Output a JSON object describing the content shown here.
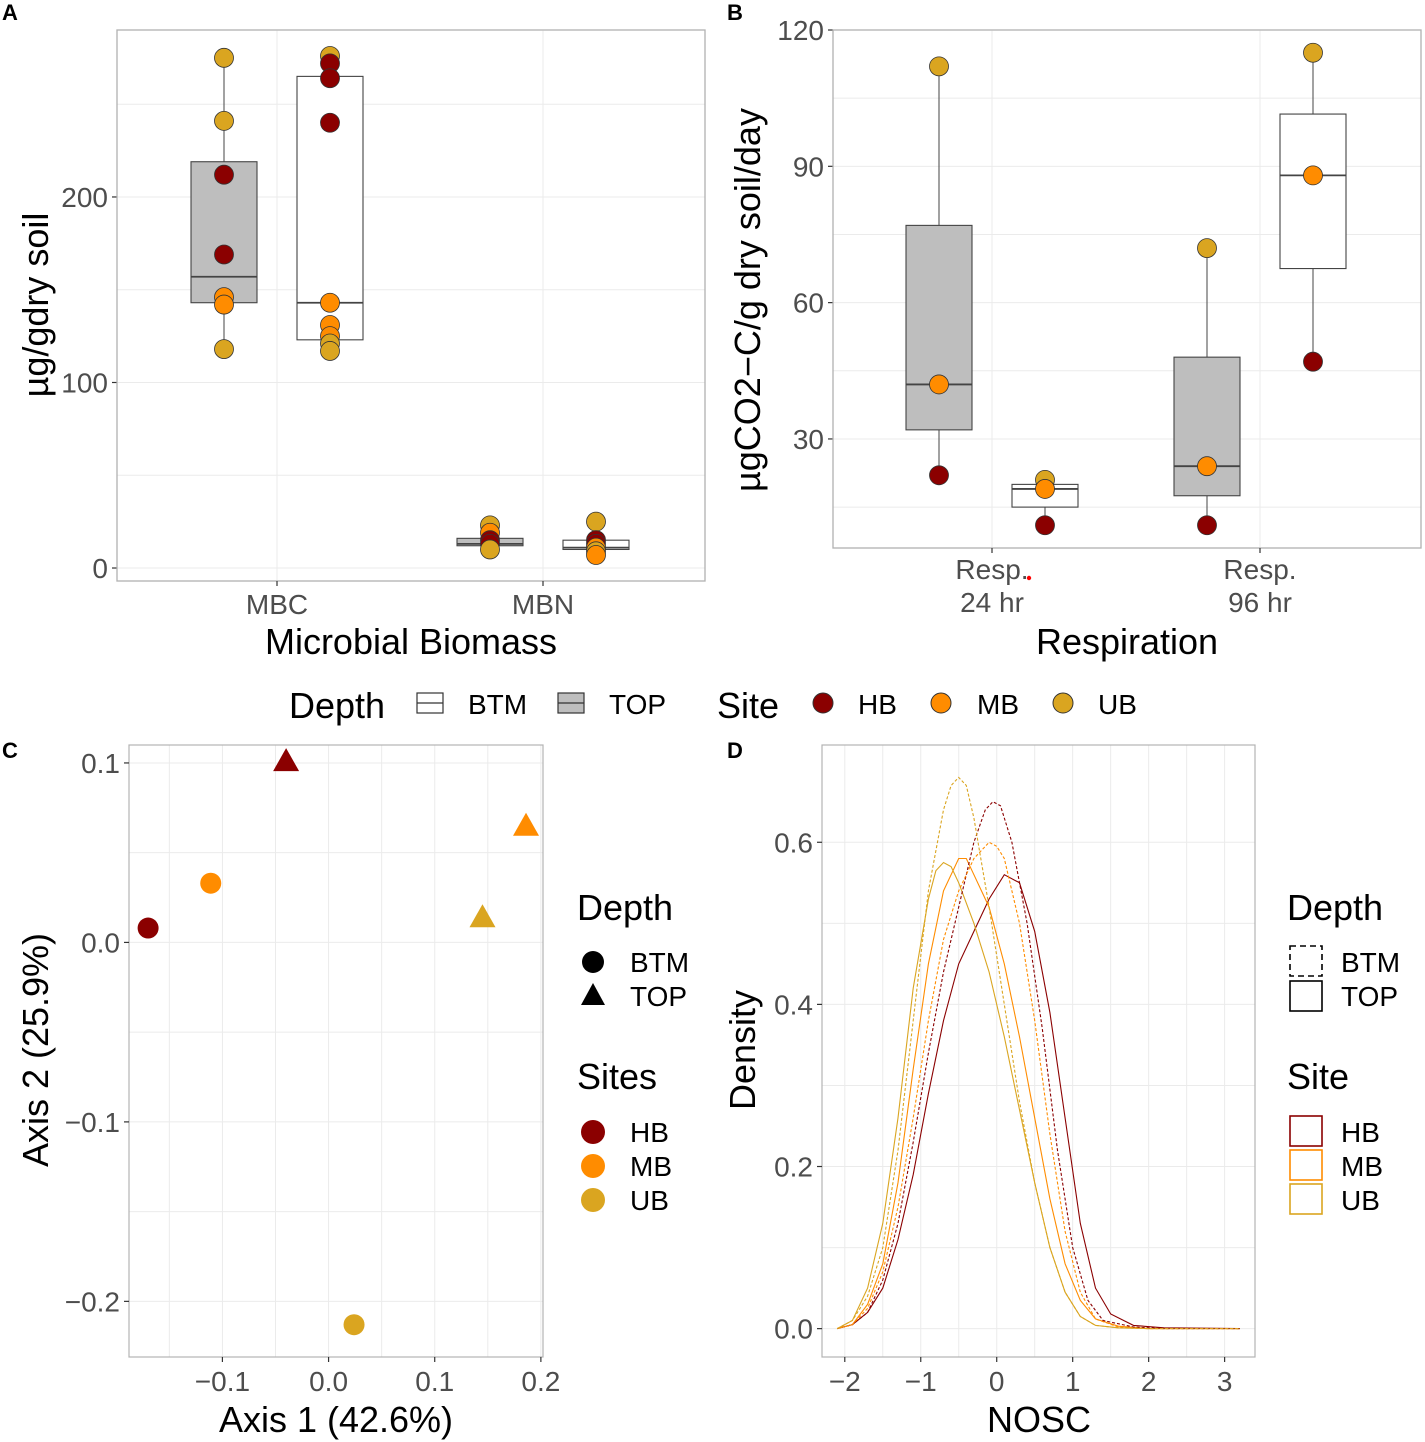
{
  "panels": {
    "A": "A",
    "B": "B",
    "C": "C",
    "D": "D"
  },
  "colors": {
    "HB": "#8b0000",
    "MB": "#ff8c00",
    "UB": "#daa520",
    "box_top": "#bebebe",
    "box_btm": "#ffffff",
    "red_dot": "#ff0000"
  },
  "legend_ab": {
    "depth_title": "Depth",
    "depth_items": [
      "BTM",
      "TOP"
    ],
    "site_title": "Site",
    "site_items": [
      "HB",
      "MB",
      "UB"
    ]
  },
  "legend_c": {
    "depth_title": "Depth",
    "depth_items": [
      "BTM",
      "TOP"
    ],
    "site_title": "Sites",
    "site_items": [
      "HB",
      "MB",
      "UB"
    ]
  },
  "legend_d": {
    "depth_title": "Depth",
    "depth_items": [
      "BTM",
      "TOP"
    ],
    "site_title": "Site",
    "site_items": [
      "HB",
      "MB",
      "UB"
    ]
  },
  "chart_data": [
    {
      "panel": "A",
      "type": "box",
      "xlabel": "Microbial Biomass",
      "ylabel": "µg/gdry soil",
      "categories": [
        "MBC",
        "MBN"
      ],
      "ylim": [
        -7,
        290
      ],
      "yticks": [
        0,
        100,
        200
      ],
      "boxes": [
        {
          "category": "MBC",
          "depth": "TOP",
          "q1": 143,
          "median": 157,
          "q3": 219,
          "whisker_low": 118,
          "whisker_high": 275
        },
        {
          "category": "MBC",
          "depth": "BTM",
          "q1": 123,
          "median": 143,
          "q3": 265,
          "whisker_low": 117,
          "whisker_high": 276
        },
        {
          "category": "MBN",
          "depth": "TOP",
          "q1": 12,
          "median": 13,
          "q3": 16,
          "whisker_low": 10,
          "whisker_high": 23
        },
        {
          "category": "MBN",
          "depth": "BTM",
          "q1": 10,
          "median": 11,
          "q3": 15,
          "whisker_low": 7,
          "whisker_high": 25
        }
      ],
      "points": [
        {
          "category": "MBC",
          "depth": "TOP",
          "site": "UB",
          "y": 275
        },
        {
          "category": "MBC",
          "depth": "TOP",
          "site": "UB",
          "y": 241
        },
        {
          "category": "MBC",
          "depth": "TOP",
          "site": "HB",
          "y": 212
        },
        {
          "category": "MBC",
          "depth": "TOP",
          "site": "HB",
          "y": 169
        },
        {
          "category": "MBC",
          "depth": "TOP",
          "site": "MB",
          "y": 146
        },
        {
          "category": "MBC",
          "depth": "TOP",
          "site": "MB",
          "y": 142
        },
        {
          "category": "MBC",
          "depth": "TOP",
          "site": "UB",
          "y": 118
        },
        {
          "category": "MBC",
          "depth": "BTM",
          "site": "UB",
          "y": 276
        },
        {
          "category": "MBC",
          "depth": "BTM",
          "site": "HB",
          "y": 272
        },
        {
          "category": "MBC",
          "depth": "BTM",
          "site": "HB",
          "y": 264
        },
        {
          "category": "MBC",
          "depth": "BTM",
          "site": "HB",
          "y": 240
        },
        {
          "category": "MBC",
          "depth": "BTM",
          "site": "MB",
          "y": 143
        },
        {
          "category": "MBC",
          "depth": "BTM",
          "site": "MB",
          "y": 131
        },
        {
          "category": "MBC",
          "depth": "BTM",
          "site": "MB",
          "y": 125
        },
        {
          "category": "MBC",
          "depth": "BTM",
          "site": "UB",
          "y": 121
        },
        {
          "category": "MBC",
          "depth": "BTM",
          "site": "UB",
          "y": 117
        },
        {
          "category": "MBN",
          "depth": "TOP",
          "site": "UB",
          "y": 23
        },
        {
          "category": "MBN",
          "depth": "TOP",
          "site": "MB",
          "y": 19
        },
        {
          "category": "MBN",
          "depth": "TOP",
          "site": "HB",
          "y": 15
        },
        {
          "category": "MBN",
          "depth": "TOP",
          "site": "HB",
          "y": 13
        },
        {
          "category": "MBN",
          "depth": "TOP",
          "site": "UB",
          "y": 10
        },
        {
          "category": "MBN",
          "depth": "BTM",
          "site": "UB",
          "y": 25
        },
        {
          "category": "MBN",
          "depth": "BTM",
          "site": "HB",
          "y": 15
        },
        {
          "category": "MBN",
          "depth": "BTM",
          "site": "HB",
          "y": 13
        },
        {
          "category": "MBN",
          "depth": "BTM",
          "site": "MB",
          "y": 11
        },
        {
          "category": "MBN",
          "depth": "BTM",
          "site": "UB",
          "y": 9
        },
        {
          "category": "MBN",
          "depth": "BTM",
          "site": "MB",
          "y": 7
        }
      ]
    },
    {
      "panel": "B",
      "type": "box",
      "xlabel": "Respiration",
      "ylabel": "µgCO2−C/g dry soil/day",
      "categories": [
        [
          "Resp.",
          "24 hr"
        ],
        [
          "Resp.",
          "96 hr"
        ]
      ],
      "ylim": [
        6,
        120
      ],
      "yticks": [
        30,
        60,
        90,
        120
      ],
      "boxes": [
        {
          "category": 0,
          "depth": "TOP",
          "q1": 32,
          "median": 42,
          "q3": 77,
          "whisker_low": 22,
          "whisker_high": 112
        },
        {
          "category": 0,
          "depth": "BTM",
          "q1": 15,
          "median": 19,
          "q3": 20,
          "whisker_low": 11,
          "whisker_high": 21
        },
        {
          "category": 1,
          "depth": "TOP",
          "q1": 17.5,
          "median": 24,
          "q3": 48,
          "whisker_low": 11,
          "whisker_high": 72
        },
        {
          "category": 1,
          "depth": "BTM",
          "q1": 67.5,
          "median": 88,
          "q3": 101.5,
          "whisker_low": 47,
          "whisker_high": 115
        }
      ],
      "points": [
        {
          "category": 0,
          "depth": "TOP",
          "site": "UB",
          "y": 112
        },
        {
          "category": 0,
          "depth": "TOP",
          "site": "MB",
          "y": 42
        },
        {
          "category": 0,
          "depth": "TOP",
          "site": "HB",
          "y": 22
        },
        {
          "category": 0,
          "depth": "BTM",
          "site": "UB",
          "y": 21
        },
        {
          "category": 0,
          "depth": "BTM",
          "site": "MB",
          "y": 19
        },
        {
          "category": 0,
          "depth": "BTM",
          "site": "HB",
          "y": 11
        },
        {
          "category": 1,
          "depth": "TOP",
          "site": "UB",
          "y": 72
        },
        {
          "category": 1,
          "depth": "TOP",
          "site": "MB",
          "y": 24
        },
        {
          "category": 1,
          "depth": "TOP",
          "site": "HB",
          "y": 11
        },
        {
          "category": 1,
          "depth": "BTM",
          "site": "UB",
          "y": 115
        },
        {
          "category": 1,
          "depth": "BTM",
          "site": "MB",
          "y": 88
        },
        {
          "category": 1,
          "depth": "BTM",
          "site": "HB",
          "y": 47
        }
      ]
    },
    {
      "panel": "C",
      "type": "scatter",
      "xlabel": "Axis 1 (42.6%)",
      "ylabel": "Axis 2 (25.9%)",
      "xlim": [
        -0.188,
        0.202
      ],
      "ylim": [
        -0.231,
        0.11
      ],
      "xticks": [
        -0.1,
        0.0,
        0.1,
        0.2
      ],
      "yticks": [
        -0.2,
        -0.1,
        0.0,
        0.1
      ],
      "xtick_labels": [
        "−0.1",
        "0.0",
        "0.1",
        "0.2"
      ],
      "ytick_labels": [
        "−0.2",
        "−0.1",
        "0.0",
        "0.1"
      ],
      "points": [
        {
          "site": "HB",
          "depth": "BTM",
          "x": -0.17,
          "y": 0.008
        },
        {
          "site": "MB",
          "depth": "BTM",
          "x": -0.111,
          "y": 0.033
        },
        {
          "site": "HB",
          "depth": "TOP",
          "x": -0.04,
          "y": 0.101
        },
        {
          "site": "MB",
          "depth": "TOP",
          "x": 0.186,
          "y": 0.065
        },
        {
          "site": "UB",
          "depth": "TOP",
          "x": 0.145,
          "y": 0.014
        },
        {
          "site": "UB",
          "depth": "BTM",
          "x": 0.024,
          "y": -0.213
        }
      ]
    },
    {
      "panel": "D",
      "type": "line",
      "xlabel": "NOSC",
      "ylabel": "Density",
      "xlim": [
        -2.3,
        3.4
      ],
      "ylim": [
        -0.035,
        0.72
      ],
      "xticks": [
        -2,
        -1,
        0,
        1,
        2,
        3
      ],
      "yticks": [
        0.0,
        0.2,
        0.4,
        0.6
      ],
      "xtick_labels": [
        "−2",
        "−1",
        "0",
        "1",
        "2",
        "3"
      ],
      "ytick_labels": [
        "0.0",
        "0.2",
        "0.4",
        "0.6"
      ],
      "series": [
        {
          "name": "HB TOP",
          "site": "HB",
          "depth": "TOP",
          "x": [
            -2.1,
            -1.9,
            -1.7,
            -1.5,
            -1.3,
            -1.1,
            -0.9,
            -0.7,
            -0.5,
            -0.3,
            -0.1,
            0.1,
            0.3,
            0.5,
            0.7,
            0.9,
            1.1,
            1.3,
            1.5,
            1.8,
            2.2,
            3.2
          ],
          "y": [
            0,
            0.005,
            0.02,
            0.05,
            0.11,
            0.19,
            0.29,
            0.38,
            0.45,
            0.49,
            0.53,
            0.56,
            0.55,
            0.49,
            0.39,
            0.26,
            0.13,
            0.05,
            0.018,
            0.004,
            0.001,
            0
          ]
        },
        {
          "name": "MB TOP",
          "site": "MB",
          "depth": "TOP",
          "x": [
            -2.1,
            -1.9,
            -1.7,
            -1.5,
            -1.3,
            -1.1,
            -0.9,
            -0.7,
            -0.5,
            -0.4,
            -0.3,
            -0.1,
            0.1,
            0.3,
            0.5,
            0.7,
            0.9,
            1.1,
            1.3,
            1.6,
            2.0,
            3.2
          ],
          "y": [
            0,
            0.005,
            0.03,
            0.08,
            0.18,
            0.32,
            0.45,
            0.54,
            0.58,
            0.58,
            0.56,
            0.52,
            0.45,
            0.36,
            0.26,
            0.16,
            0.08,
            0.035,
            0.012,
            0.003,
            0,
            0
          ]
        },
        {
          "name": "UB TOP",
          "site": "UB",
          "depth": "TOP",
          "x": [
            -2.1,
            -1.9,
            -1.7,
            -1.5,
            -1.3,
            -1.1,
            -0.9,
            -0.8,
            -0.7,
            -0.6,
            -0.5,
            -0.3,
            -0.1,
            0.1,
            0.3,
            0.5,
            0.7,
            0.9,
            1.1,
            1.3,
            1.6,
            2.0,
            3.2
          ],
          "y": [
            0,
            0.01,
            0.05,
            0.13,
            0.26,
            0.42,
            0.53,
            0.565,
            0.575,
            0.57,
            0.55,
            0.5,
            0.44,
            0.36,
            0.27,
            0.18,
            0.1,
            0.045,
            0.015,
            0.004,
            0.001,
            0,
            0
          ]
        },
        {
          "name": "HB BTM",
          "site": "HB",
          "depth": "BTM",
          "x": [
            -2.1,
            -1.9,
            -1.7,
            -1.5,
            -1.3,
            -1.1,
            -0.9,
            -0.7,
            -0.5,
            -0.3,
            -0.15,
            -0.05,
            0.05,
            0.2,
            0.4,
            0.6,
            0.8,
            1.0,
            1.2,
            1.4,
            1.8,
            2.2,
            3.2
          ],
          "y": [
            0,
            0.005,
            0.02,
            0.06,
            0.13,
            0.23,
            0.34,
            0.44,
            0.52,
            0.6,
            0.64,
            0.65,
            0.645,
            0.6,
            0.5,
            0.37,
            0.22,
            0.1,
            0.035,
            0.01,
            0.002,
            0,
            0
          ]
        },
        {
          "name": "MB BTM",
          "site": "MB",
          "depth": "BTM",
          "x": [
            -2.1,
            -1.9,
            -1.7,
            -1.5,
            -1.3,
            -1.1,
            -0.9,
            -0.7,
            -0.5,
            -0.3,
            -0.1,
            0.0,
            0.1,
            0.3,
            0.5,
            0.7,
            0.9,
            1.1,
            1.3,
            1.6,
            2.0,
            3.2
          ],
          "y": [
            0,
            0.005,
            0.025,
            0.07,
            0.15,
            0.26,
            0.38,
            0.48,
            0.54,
            0.58,
            0.6,
            0.595,
            0.58,
            0.5,
            0.38,
            0.24,
            0.12,
            0.045,
            0.012,
            0.002,
            0,
            0
          ]
        },
        {
          "name": "UB BTM",
          "site": "UB",
          "depth": "BTM",
          "x": [
            -2.1,
            -1.9,
            -1.7,
            -1.5,
            -1.3,
            -1.1,
            -0.9,
            -0.7,
            -0.6,
            -0.5,
            -0.4,
            -0.3,
            -0.1,
            0.1,
            0.3,
            0.5,
            0.7,
            0.9,
            1.1,
            1.3,
            1.6,
            2.0,
            3.2
          ],
          "y": [
            0,
            0.01,
            0.04,
            0.1,
            0.22,
            0.38,
            0.54,
            0.64,
            0.67,
            0.68,
            0.67,
            0.63,
            0.52,
            0.4,
            0.28,
            0.18,
            0.1,
            0.045,
            0.015,
            0.004,
            0.001,
            0,
            0
          ]
        }
      ]
    }
  ]
}
